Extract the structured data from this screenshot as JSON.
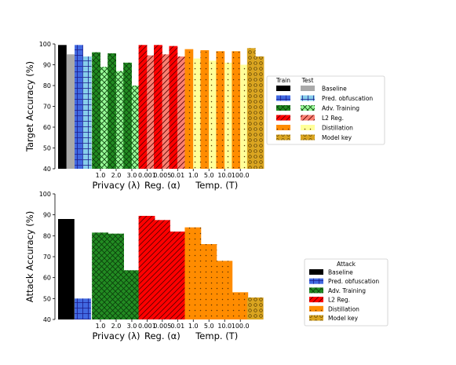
{
  "styles": {
    "baseline": {
      "train": "#000000",
      "test": "#a9a9a9",
      "pattern": "none",
      "stroke": "#000000"
    },
    "pred": {
      "train": "#4169e1",
      "test": "#87ceeb",
      "pattern": "grid",
      "stroke": "#1a1a8a"
    },
    "adv": {
      "train": "#228b22",
      "test": "#98fb98",
      "pattern": "cross",
      "stroke": "#0a3d0a"
    },
    "l2": {
      "train": "#ff0000",
      "test": "#fa8072",
      "pattern": "diag",
      "stroke": "#550000"
    },
    "distill": {
      "train": "#ff8c00",
      "test": "#ffff99",
      "pattern": "dots",
      "stroke": "#5a3000"
    },
    "modelkey": {
      "train": "#daa520",
      "test": "#daa520",
      "pattern": "rings",
      "stroke": "#4a3200"
    }
  },
  "chart_data": [
    {
      "type": "bar",
      "ylabel": "Target Accuracy (%)",
      "ylim": [
        40,
        100
      ],
      "yticks": [
        "40",
        "50",
        "60",
        "70",
        "80",
        "90",
        "100"
      ],
      "groups": [
        "Privacy (λ)",
        "Reg. (α)",
        "Temp. (T)"
      ],
      "tick_labels": [
        "1.0",
        "2.0",
        "3.0",
        "0.001",
        "0.005",
        "0.01",
        "1.0",
        "5.0",
        "10.0",
        "100.0"
      ],
      "series": [
        "Train",
        "Test"
      ],
      "bars": [
        {
          "method": "baseline",
          "train": 99.5,
          "test": 95
        },
        {
          "method": "pred",
          "train": 99.5,
          "test": 94
        },
        {
          "method": "adv",
          "label": "1.0",
          "train": 96,
          "test": 89
        },
        {
          "method": "adv",
          "label": "2.0",
          "train": 95.5,
          "test": 87
        },
        {
          "method": "adv",
          "label": "3.0",
          "train": 91,
          "test": 80
        },
        {
          "method": "l2",
          "label": "0.001",
          "train": 99.5,
          "test": 94.5
        },
        {
          "method": "l2",
          "label": "0.005",
          "train": 99.5,
          "test": 95
        },
        {
          "method": "l2",
          "label": "0.01",
          "train": 99,
          "test": 94
        },
        {
          "method": "distill",
          "label": "1.0",
          "train": 97.5,
          "test": 93
        },
        {
          "method": "distill",
          "label": "5.0",
          "train": 97,
          "test": 92
        },
        {
          "method": "distill",
          "label": "10.0",
          "train": 96.5,
          "test": 91
        },
        {
          "method": "distill",
          "label": "100.0",
          "train": 96.5,
          "test": 90
        },
        {
          "method": "modelkey",
          "train": 98,
          "test": 94
        }
      ],
      "legend": {
        "headers": [
          "Train",
          "Test"
        ],
        "entries": [
          {
            "method": "baseline",
            "label": "Baseline"
          },
          {
            "method": "pred",
            "label": "Pred. obfuscation"
          },
          {
            "method": "adv",
            "label": "Adv. Training"
          },
          {
            "method": "l2",
            "label": "L2 Reg."
          },
          {
            "method": "distill",
            "label": "Distillation"
          },
          {
            "method": "modelkey",
            "label": "Model key"
          }
        ]
      }
    },
    {
      "type": "bar",
      "ylabel": "Attack Accuracy (%)",
      "ylim": [
        40,
        100
      ],
      "yticks": [
        "40",
        "50",
        "60",
        "70",
        "80",
        "90",
        "100"
      ],
      "groups": [
        "Privacy (λ)",
        "Reg. (α)",
        "Temp. (T)"
      ],
      "tick_labels": [
        "1.0",
        "2.0",
        "3.0",
        "0.001",
        "0.005",
        "0.01",
        "1.0",
        "5.0",
        "10.0",
        "100.0"
      ],
      "bars": [
        {
          "method": "baseline",
          "value": 88
        },
        {
          "method": "pred",
          "value": 50
        },
        {
          "method": "adv",
          "label": "1.0",
          "value": 81.5
        },
        {
          "method": "adv",
          "label": "2.0",
          "value": 81
        },
        {
          "method": "adv",
          "label": "3.0",
          "value": 63.5
        },
        {
          "method": "l2",
          "label": "0.001",
          "value": 89.5
        },
        {
          "method": "l2",
          "label": "0.005",
          "value": 87.5
        },
        {
          "method": "l2",
          "label": "0.01",
          "value": 82
        },
        {
          "method": "distill",
          "label": "1.0",
          "value": 84
        },
        {
          "method": "distill",
          "label": "5.0",
          "value": 76
        },
        {
          "method": "distill",
          "label": "10.0",
          "value": 68
        },
        {
          "method": "distill",
          "label": "100.0",
          "value": 53
        },
        {
          "method": "modelkey",
          "value": 50.5
        }
      ],
      "legend": {
        "title": "Attack",
        "entries": [
          {
            "method": "baseline",
            "label": "Baseline"
          },
          {
            "method": "pred",
            "label": "Pred. obfuscation"
          },
          {
            "method": "adv",
            "label": "Adv. Training"
          },
          {
            "method": "l2",
            "label": "L2 Reg."
          },
          {
            "method": "distill",
            "label": "Distillation"
          },
          {
            "method": "modelkey",
            "label": "Model key"
          }
        ]
      }
    }
  ]
}
